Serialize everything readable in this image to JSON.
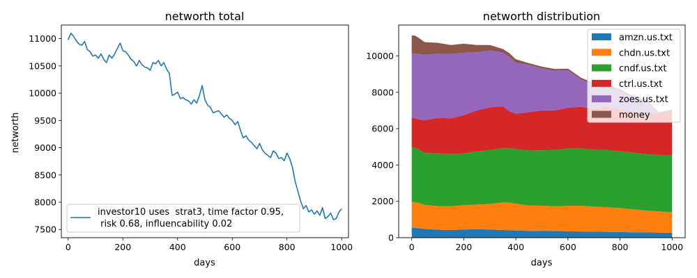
{
  "chart_data": [
    {
      "type": "line",
      "title": "networth total",
      "xlabel": "days",
      "ylabel": "networth",
      "xlim": [
        -25,
        1025
      ],
      "ylim": [
        7350,
        11250
      ],
      "xticks": [
        0,
        200,
        400,
        600,
        800,
        1000
      ],
      "yticks": [
        7500,
        8000,
        8500,
        9000,
        9500,
        10000,
        10500,
        11000
      ],
      "grid": false,
      "legend_position": "bottom-left",
      "series": [
        {
          "name": "investor10 uses  strat3, time factor 0.95,",
          "name_line2": " risk 0.68, influencability 0.02",
          "color": "#1f77b4",
          "x": [
            0,
            10,
            20,
            30,
            40,
            50,
            60,
            70,
            80,
            90,
            100,
            110,
            120,
            130,
            140,
            150,
            160,
            170,
            180,
            190,
            200,
            210,
            220,
            230,
            240,
            250,
            260,
            270,
            280,
            290,
            300,
            310,
            320,
            330,
            340,
            350,
            360,
            370,
            380,
            390,
            400,
            410,
            420,
            430,
            440,
            450,
            460,
            470,
            480,
            490,
            500,
            510,
            520,
            530,
            540,
            550,
            560,
            570,
            580,
            590,
            600,
            610,
            620,
            630,
            640,
            650,
            660,
            670,
            680,
            690,
            700,
            710,
            720,
            730,
            740,
            750,
            760,
            770,
            780,
            790,
            800,
            810,
            820,
            830,
            840,
            850,
            860,
            870,
            880,
            890,
            900,
            910,
            920,
            930,
            940,
            950,
            960,
            970,
            980,
            990,
            1000
          ],
          "y": [
            10980,
            11100,
            11040,
            10960,
            10900,
            10880,
            10950,
            10800,
            10760,
            10680,
            10700,
            10640,
            10720,
            10620,
            10560,
            10700,
            10640,
            10720,
            10820,
            10920,
            10780,
            10760,
            10700,
            10620,
            10580,
            10500,
            10600,
            10520,
            10480,
            10460,
            10420,
            10560,
            10540,
            10600,
            10500,
            10560,
            10440,
            10360,
            9960,
            9980,
            10020,
            9900,
            9920,
            9880,
            9860,
            9800,
            9880,
            9820,
            9960,
            10140,
            9880,
            9780,
            9740,
            9640,
            9660,
            9680,
            9620,
            9560,
            9600,
            9540,
            9500,
            9420,
            9480,
            9320,
            9180,
            9220,
            9140,
            9100,
            9040,
            8980,
            9080,
            8960,
            8900,
            8860,
            8820,
            8940,
            8900,
            8800,
            8820,
            8760,
            8900,
            8800,
            8640,
            8380,
            8200,
            8020,
            7880,
            7940,
            7820,
            7860,
            7780,
            7840,
            7760,
            7900,
            7700,
            7740,
            7800,
            7680,
            7700,
            7820,
            7880
          ]
        }
      ]
    },
    {
      "type": "area",
      "stacked": true,
      "title": "networth distribution",
      "xlabel": "days",
      "ylabel": "",
      "xlim": [
        -50,
        1050
      ],
      "ylim": [
        0,
        11700
      ],
      "xticks": [
        0,
        200,
        400,
        600,
        800,
        1000
      ],
      "yticks": [
        0,
        2000,
        4000,
        6000,
        8000,
        10000
      ],
      "grid": false,
      "legend_position": "top-right",
      "x": [
        0,
        10,
        25,
        50,
        100,
        150,
        200,
        250,
        300,
        350,
        375,
        400,
        450,
        500,
        550,
        600,
        650,
        700,
        750,
        800,
        850,
        900,
        950,
        1000
      ],
      "series": [
        {
          "name": "amzn.us.txt",
          "color": "#1f77b4",
          "values": [
            550,
            540,
            520,
            480,
            440,
            420,
            450,
            470,
            450,
            420,
            410,
            390,
            370,
            380,
            370,
            350,
            340,
            330,
            320,
            310,
            300,
            290,
            280,
            270
          ]
        },
        {
          "name": "chdn.us.txt",
          "color": "#ff7f0e",
          "values": [
            1420,
            1420,
            1400,
            1320,
            1300,
            1310,
            1340,
            1350,
            1400,
            1520,
            1520,
            1480,
            1400,
            1380,
            1360,
            1400,
            1420,
            1380,
            1360,
            1320,
            1260,
            1200,
            1160,
            1130
          ]
        },
        {
          "name": "cndf.us.txt",
          "color": "#2ca02c",
          "values": [
            3000,
            3000,
            2950,
            2860,
            2900,
            2870,
            2850,
            2930,
            2970,
            2990,
            3000,
            3000,
            3030,
            3050,
            3100,
            3150,
            3140,
            3130,
            3140,
            3120,
            3120,
            3110,
            3110,
            3110
          ]
        },
        {
          "name": "ctrl.us.txt",
          "color": "#d62728",
          "values": [
            1650,
            1620,
            1640,
            1800,
            1950,
            1970,
            2100,
            2250,
            2350,
            2300,
            2020,
            1950,
            2100,
            2200,
            2180,
            2250,
            2300,
            2260,
            2390,
            2300,
            2270,
            2200,
            2300,
            2490
          ]
        },
        {
          "name": "zoes.us.txt",
          "color": "#9467bd",
          "values": [
            3500,
            3550,
            3600,
            3600,
            3530,
            3530,
            3430,
            3200,
            3130,
            2950,
            3000,
            2800,
            2600,
            2300,
            2170,
            2050,
            1500,
            1300,
            1100,
            1040,
            750,
            700,
            0,
            0
          ]
        },
        {
          "name": "money",
          "color": "#8c564b",
          "values": [
            1000,
            1000,
            900,
            700,
            600,
            500,
            500,
            400,
            300,
            200,
            200,
            200,
            100,
            100,
            100,
            100,
            100,
            100,
            100,
            80,
            80,
            80,
            50,
            50
          ]
        }
      ]
    }
  ]
}
